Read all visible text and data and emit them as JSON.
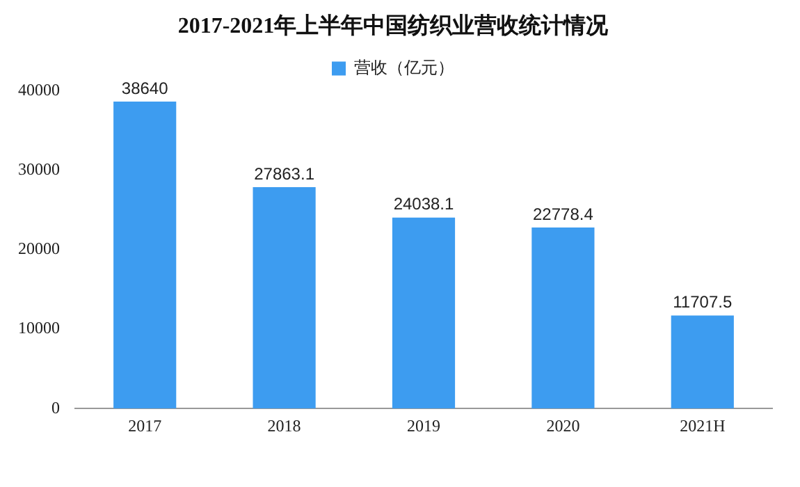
{
  "chart_data": {
    "type": "bar",
    "title": "2017-2021年上半年中国纺织业营收统计情况",
    "categories": [
      "2017",
      "2018",
      "2019",
      "2020",
      "2021H"
    ],
    "series": [
      {
        "name": "营收（亿元）",
        "color": "#3d9cf0",
        "values": [
          38640,
          27863.1,
          24038.1,
          22778.4,
          11707.5
        ]
      }
    ],
    "ylim": [
      0,
      40000
    ],
    "yticks": [
      0,
      10000,
      20000,
      30000,
      40000
    ],
    "grid": false,
    "legend": "top",
    "data_labels": true
  }
}
